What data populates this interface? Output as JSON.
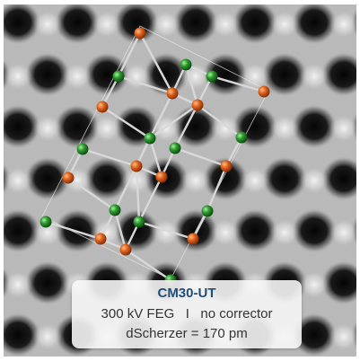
{
  "caption": {
    "title": "CM30-UT",
    "line1": "300 kV FEG   I   no corrector",
    "line2": "dScherzer = 170 pm"
  },
  "colors": {
    "atom_orange": "#e0641e",
    "atom_green": "#2e9a2e",
    "title_blue": "#1f4e79",
    "bond": "#d8d8d8"
  }
}
